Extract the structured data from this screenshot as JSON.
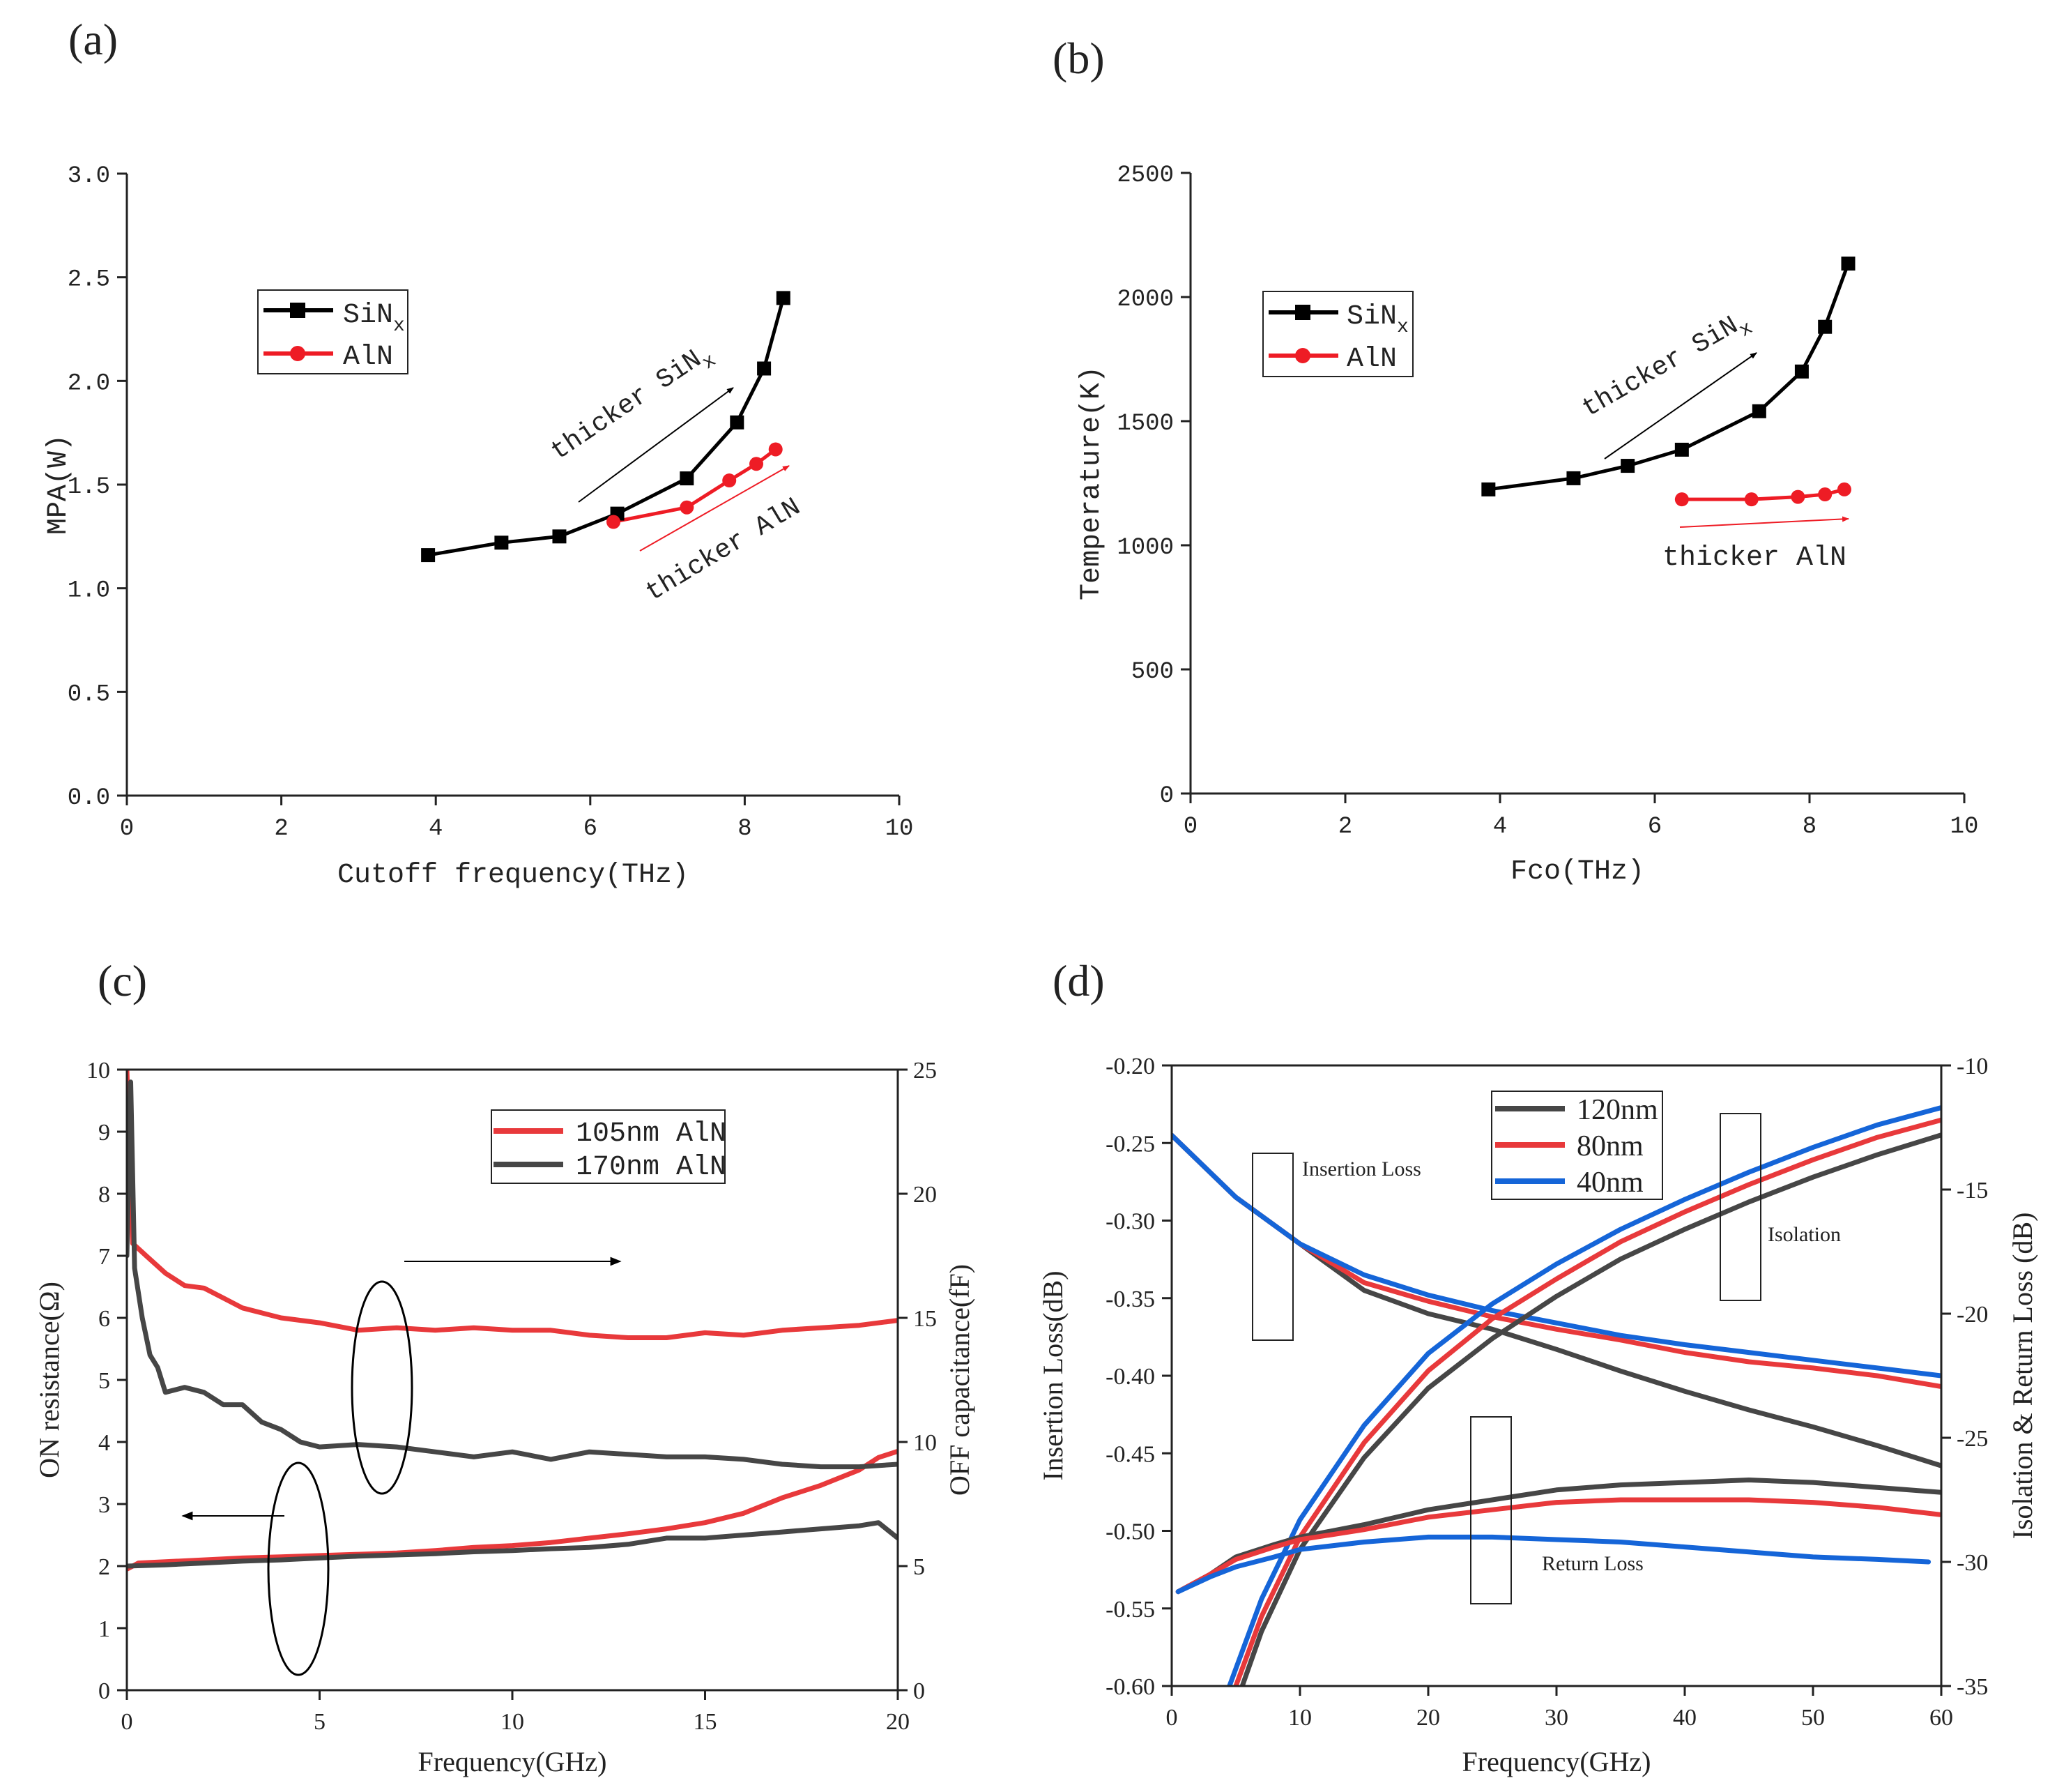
{
  "chart_data": [
    {
      "panel": "(a)",
      "type": "line",
      "xlabel": "Cutoff frequency(THz)",
      "ylabel": "MPA(W)",
      "xlim": [
        0,
        10
      ],
      "ylim": [
        0,
        3.0
      ],
      "xticks": [
        "0",
        "2",
        "4",
        "6",
        "8",
        "10"
      ],
      "yticks": [
        "0.0",
        "0.5",
        "1.0",
        "1.5",
        "2.0",
        "2.5",
        "3.0"
      ],
      "legend": {
        "position": "top-left",
        "entries": [
          {
            "main": "SiN",
            "sub": "x"
          },
          {
            "main": "AlN",
            "sub": ""
          }
        ]
      },
      "series": [
        {
          "name": "SiNx",
          "color": "#000000",
          "marker": "square",
          "x": [
            3.9,
            4.85,
            5.6,
            6.35,
            7.25,
            7.9,
            8.25,
            8.5
          ],
          "y": [
            1.16,
            1.22,
            1.25,
            1.36,
            1.53,
            1.8,
            2.06,
            2.4
          ]
        },
        {
          "name": "AlN",
          "color": "#ee1c25",
          "marker": "circle",
          "x": [
            6.3,
            7.25,
            7.8,
            8.15,
            8.4
          ],
          "y": [
            1.32,
            1.39,
            1.52,
            1.6,
            1.67
          ]
        }
      ],
      "annotations": [
        {
          "main": "thicker SiN",
          "sub": "x",
          "color": "#000000"
        },
        {
          "main": "thicker AlN",
          "sub": "",
          "color": "#ee1c25"
        }
      ]
    },
    {
      "panel": "(b)",
      "type": "line",
      "xlabel": "Fco(THz)",
      "ylabel": "Temperature(K)",
      "xlim": [
        0,
        10
      ],
      "ylim": [
        0,
        2500
      ],
      "xticks": [
        "0",
        "2",
        "4",
        "6",
        "8",
        "10"
      ],
      "yticks": [
        "0",
        "500",
        "1000",
        "1500",
        "2000",
        "2500"
      ],
      "legend": {
        "position": "top-left",
        "entries": [
          {
            "main": "SiN",
            "sub": "x"
          },
          {
            "main": "AlN",
            "sub": ""
          }
        ]
      },
      "series": [
        {
          "name": "SiNx",
          "color": "#000000",
          "marker": "square",
          "x": [
            3.85,
            4.95,
            5.65,
            6.35,
            7.35,
            7.9,
            8.2,
            8.5
          ],
          "y": [
            1225,
            1270,
            1320,
            1385,
            1540,
            1700,
            1880,
            2135
          ]
        },
        {
          "name": "AlN",
          "color": "#ee1c25",
          "marker": "circle",
          "x": [
            6.35,
            7.25,
            7.85,
            8.2,
            8.45
          ],
          "y": [
            1185,
            1185,
            1195,
            1205,
            1225
          ]
        }
      ],
      "annotations": [
        {
          "main": "thicker SiN",
          "sub": "x",
          "color": "#000000"
        },
        {
          "main": "thicker AlN",
          "sub": "",
          "color": "#ee1c25"
        }
      ]
    },
    {
      "panel": "(c)",
      "type": "line",
      "xlabel": "Frequency(GHz)",
      "ylabel": "ON resistance(Ω)",
      "y2label": "OFF capacitance(fF)",
      "xlim": [
        0,
        20
      ],
      "ylim": [
        0,
        10
      ],
      "y2lim": [
        0,
        25
      ],
      "xticks": [
        "0",
        "5",
        "10",
        "15",
        "20"
      ],
      "yticks": [
        "0",
        "1",
        "2",
        "3",
        "4",
        "5",
        "6",
        "7",
        "8",
        "9",
        "10"
      ],
      "y2ticks": [
        "0",
        "5",
        "10",
        "15",
        "20",
        "25"
      ],
      "legend": {
        "position": "top-right",
        "entries": [
          {
            "main": "105nm AlN",
            "sub": ""
          },
          {
            "main": "170nm AlN",
            "sub": ""
          }
        ]
      },
      "series": [
        {
          "name": "105nm AlN resistance",
          "axis": "left",
          "color": "#e8393b",
          "x": [
            0,
            0.3,
            1,
            2,
            3,
            4,
            5,
            6,
            7,
            8,
            9,
            10,
            11,
            12,
            13,
            14,
            15,
            16,
            17,
            18,
            19,
            19.5,
            20
          ],
          "y": [
            1.95,
            2.05,
            2.07,
            2.1,
            2.13,
            2.15,
            2.17,
            2.19,
            2.21,
            2.25,
            2.3,
            2.33,
            2.38,
            2.45,
            2.52,
            2.6,
            2.7,
            2.85,
            3.1,
            3.3,
            3.55,
            3.75,
            3.85
          ]
        },
        {
          "name": "170nm AlN resistance",
          "axis": "left",
          "color": "#464646",
          "x": [
            0,
            1,
            2,
            3,
            4,
            5,
            6,
            7,
            8,
            9,
            10,
            11,
            12,
            13,
            14,
            15,
            16,
            17,
            18,
            19,
            19.5,
            20
          ],
          "y": [
            2.0,
            2.02,
            2.05,
            2.08,
            2.1,
            2.13,
            2.16,
            2.18,
            2.2,
            2.23,
            2.25,
            2.28,
            2.3,
            2.35,
            2.45,
            2.45,
            2.5,
            2.55,
            2.6,
            2.65,
            2.7,
            2.45
          ]
        },
        {
          "name": "105nm AlN capacitance",
          "axis": "right",
          "color": "#e8393b",
          "x": [
            0,
            0.15,
            0.5,
            1,
            1.5,
            2,
            2.5,
            3,
            3.5,
            4,
            5,
            6,
            7,
            8,
            9,
            10,
            11,
            12,
            13,
            14,
            15,
            16,
            17,
            18,
            19,
            20
          ],
          "y": [
            25,
            18.0,
            17.5,
            16.8,
            16.3,
            16.2,
            15.8,
            15.4,
            15.2,
            15.0,
            14.8,
            14.5,
            14.6,
            14.5,
            14.6,
            14.5,
            14.5,
            14.3,
            14.2,
            14.2,
            14.4,
            14.3,
            14.5,
            14.6,
            14.7,
            14.9
          ]
        },
        {
          "name": "170nm AlN capacitance",
          "axis": "right",
          "color": "#464646",
          "x": [
            0,
            0.1,
            0.2,
            0.4,
            0.6,
            0.8,
            1,
            1.5,
            2,
            2.5,
            3,
            3.5,
            4,
            4.5,
            5,
            6,
            7,
            8,
            9,
            10,
            11,
            12,
            13,
            14,
            15,
            16,
            17,
            18,
            19,
            20
          ],
          "y": [
            17.5,
            24.5,
            17.0,
            15.0,
            13.5,
            13.0,
            12.0,
            12.2,
            12.0,
            11.5,
            11.5,
            10.8,
            10.5,
            10.0,
            9.8,
            9.9,
            9.8,
            9.6,
            9.4,
            9.6,
            9.3,
            9.6,
            9.5,
            9.4,
            9.4,
            9.3,
            9.1,
            9.0,
            9.0,
            9.1
          ]
        }
      ],
      "annotations": []
    },
    {
      "panel": "(d)",
      "type": "line",
      "xlabel": "Frequency(GHz)",
      "ylabel": "Insertion Loss(dB)",
      "y2label": "Isolation & Return Loss (dB)",
      "xlim": [
        0,
        60
      ],
      "ylim": [
        -0.6,
        -0.2
      ],
      "y2lim": [
        -35,
        -10
      ],
      "xticks": [
        "0",
        "10",
        "20",
        "30",
        "40",
        "50",
        "60"
      ],
      "yticks": [
        "-0.60",
        "-0.55",
        "-0.50",
        "-0.45",
        "-0.40",
        "-0.35",
        "-0.30",
        "-0.25",
        "-0.20"
      ],
      "y2ticks": [
        "-35",
        "-30",
        "-25",
        "-20",
        "-15",
        "-10"
      ],
      "legend": {
        "position": "top-center",
        "entries": [
          {
            "main": "120nm",
            "sub": ""
          },
          {
            "main": "80nm",
            "sub": ""
          },
          {
            "main": "40nm",
            "sub": ""
          }
        ]
      },
      "series": [
        {
          "name": "120nm insertion loss",
          "axis": "left",
          "color": "#464646",
          "x": [
            0,
            5,
            10,
            15,
            20,
            25,
            30,
            35,
            40,
            45,
            50,
            55,
            60
          ],
          "y": [
            -0.245,
            -0.285,
            -0.315,
            -0.345,
            -0.36,
            -0.37,
            -0.383,
            -0.397,
            -0.41,
            -0.422,
            -0.433,
            -0.445,
            -0.458
          ]
        },
        {
          "name": "80nm insertion loss",
          "axis": "left",
          "color": "#e8393b",
          "x": [
            0,
            5,
            10,
            15,
            20,
            25,
            30,
            35,
            40,
            45,
            50,
            55,
            60
          ],
          "y": [
            -0.245,
            -0.285,
            -0.315,
            -0.34,
            -0.352,
            -0.362,
            -0.37,
            -0.377,
            -0.385,
            -0.391,
            -0.395,
            -0.4,
            -0.407
          ]
        },
        {
          "name": "40nm insertion loss",
          "axis": "left",
          "color": "#1565d8",
          "x": [
            0,
            5,
            10,
            15,
            20,
            25,
            30,
            35,
            40,
            45,
            50,
            55,
            60
          ],
          "y": [
            -0.245,
            -0.285,
            -0.315,
            -0.335,
            -0.348,
            -0.358,
            -0.366,
            -0.374,
            -0.38,
            -0.385,
            -0.39,
            -0.395,
            -0.4
          ]
        },
        {
          "name": "120nm isolation",
          "axis": "right",
          "color": "#464646",
          "x": [
            5.5,
            7,
            10,
            15,
            20,
            25,
            30,
            35,
            40,
            45,
            50,
            55,
            60
          ],
          "y": [
            -35,
            -32.8,
            -29.5,
            -25.8,
            -23.0,
            -21.0,
            -19.3,
            -17.8,
            -16.6,
            -15.5,
            -14.5,
            -13.6,
            -12.8
          ]
        },
        {
          "name": "80nm isolation",
          "axis": "right",
          "color": "#e8393b",
          "x": [
            5,
            7,
            10,
            15,
            20,
            25,
            30,
            35,
            40,
            45,
            50,
            55,
            60
          ],
          "y": [
            -35,
            -32.2,
            -29.0,
            -25.2,
            -22.3,
            -20.2,
            -18.6,
            -17.1,
            -15.9,
            -14.8,
            -13.8,
            -12.9,
            -12.2
          ]
        },
        {
          "name": "40nm isolation",
          "axis": "right",
          "color": "#1565d8",
          "x": [
            4.5,
            7,
            10,
            15,
            20,
            25,
            30,
            35,
            40,
            45,
            50,
            55,
            60
          ],
          "y": [
            -35,
            -31.5,
            -28.3,
            -24.5,
            -21.6,
            -19.6,
            -18.0,
            -16.6,
            -15.4,
            -14.3,
            -13.3,
            -12.4,
            -11.7
          ]
        },
        {
          "name": "120nm return loss",
          "axis": "right",
          "color": "#464646",
          "x": [
            0.5,
            3,
            5,
            8,
            10,
            15,
            20,
            25,
            30,
            35,
            40,
            45,
            50,
            55,
            60
          ],
          "y": [
            -31.2,
            -30.5,
            -29.8,
            -29.3,
            -29.0,
            -28.5,
            -27.9,
            -27.5,
            -27.1,
            -26.9,
            -26.8,
            -26.7,
            -26.8,
            -27.0,
            -27.2
          ]
        },
        {
          "name": "80nm return loss",
          "axis": "right",
          "color": "#e8393b",
          "x": [
            0.5,
            3,
            5,
            8,
            10,
            15,
            20,
            25,
            30,
            35,
            40,
            45,
            50,
            55,
            60
          ],
          "y": [
            -31.2,
            -30.5,
            -29.9,
            -29.4,
            -29.1,
            -28.7,
            -28.2,
            -27.9,
            -27.6,
            -27.5,
            -27.5,
            -27.5,
            -27.6,
            -27.8,
            -28.1
          ]
        },
        {
          "name": "40nm return loss",
          "axis": "right",
          "color": "#1565d8",
          "x": [
            0.5,
            3,
            5,
            8,
            10,
            15,
            20,
            25,
            30,
            35,
            40,
            45,
            50,
            55,
            59
          ],
          "y": [
            -31.2,
            -30.6,
            -30.2,
            -29.8,
            -29.5,
            -29.2,
            -29.0,
            -29.0,
            -29.1,
            -29.2,
            -29.4,
            -29.6,
            -29.8,
            -29.9,
            -30.0
          ]
        }
      ],
      "annotations": [
        {
          "main": "Insertion Loss",
          "sub": "",
          "color": "#222222"
        },
        {
          "main": "Isolation",
          "sub": "",
          "color": "#222222"
        },
        {
          "main": "Return Loss",
          "sub": "",
          "color": "#222222"
        }
      ]
    }
  ]
}
